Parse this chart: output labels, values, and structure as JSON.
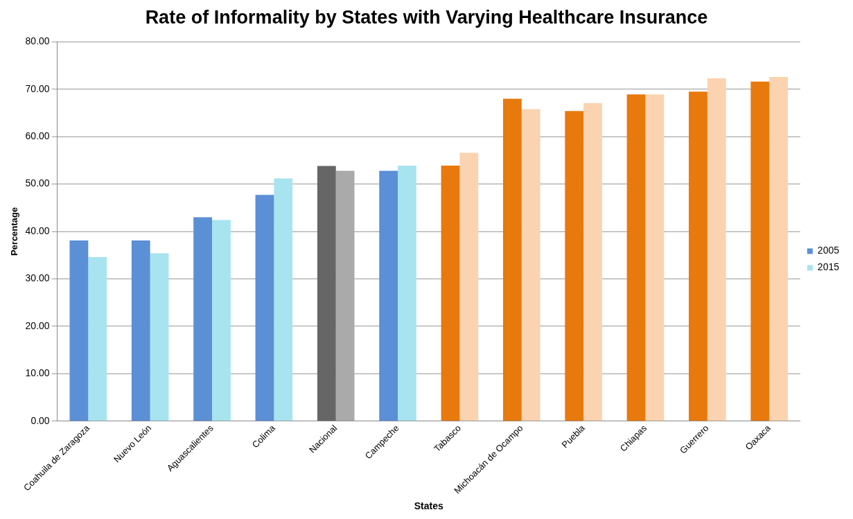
{
  "chart_data": {
    "type": "bar",
    "title": "Rate of Informality by States with Varying Healthcare Insurance",
    "xlabel": "States",
    "ylabel": "Percentage",
    "categories": [
      "Coahuila de Zaragoza",
      "Nuevo León",
      "Aguascalientes",
      "Colima",
      "Nacional",
      "Campeche",
      "Tabasco",
      "Michoacán de Ocampo",
      "Puebla",
      "Chiapas",
      "Guerrero",
      "Oaxaca"
    ],
    "series": [
      {
        "name": "2005",
        "color": "#5b8fd6",
        "colors": [
          "#5b8fd6",
          "#5b8fd6",
          "#5b8fd6",
          "#5b8fd6",
          "#666666",
          "#5b8fd6",
          "#e8790c",
          "#e8790c",
          "#e8790c",
          "#e8790c",
          "#e8790c",
          "#e8790c"
        ],
        "values": [
          38.1,
          38.1,
          43.0,
          47.7,
          53.8,
          52.8,
          53.9,
          68.0,
          65.4,
          68.9,
          69.5,
          71.6
        ]
      },
      {
        "name": "2015",
        "color": "#a8e4f0",
        "colors": [
          "#a8e4f0",
          "#a8e4f0",
          "#a8e4f0",
          "#a8e4f0",
          "#aaaaaa",
          "#a8e4f0",
          "#fbd3b0",
          "#fbd3b0",
          "#fbd3b0",
          "#fbd3b0",
          "#fbd3b0",
          "#fbd3b0"
        ],
        "values": [
          34.6,
          35.4,
          42.4,
          51.2,
          52.8,
          53.9,
          56.6,
          65.8,
          67.1,
          68.9,
          72.3,
          72.6
        ]
      }
    ],
    "ylim": [
      0,
      80
    ],
    "yticks": [
      {
        "value": 0,
        "label": "0.00"
      },
      {
        "value": 10,
        "label": "10.00"
      },
      {
        "value": 20,
        "label": "20.00"
      },
      {
        "value": 30,
        "label": "30.00"
      },
      {
        "value": 40,
        "label": "40.00"
      },
      {
        "value": 50,
        "label": "50.00"
      },
      {
        "value": 60,
        "label": "60.00"
      },
      {
        "value": 70,
        "label": "70.00"
      },
      {
        "value": 80,
        "label": "80.00"
      }
    ],
    "grid": "y",
    "legend": "right"
  }
}
